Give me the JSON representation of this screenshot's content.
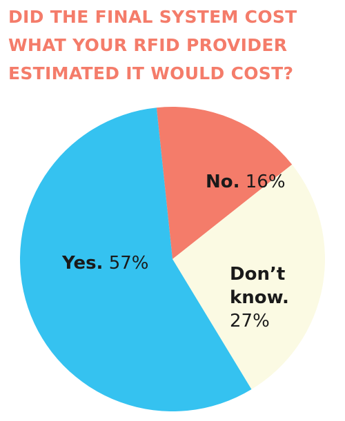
{
  "chart_data": {
    "type": "pie",
    "title": "DID THE FINAL SYSTEM COST WHAT YOUR RFID PROVIDER ESTIMATED IT WOULD COST?",
    "slices": [
      {
        "label": "No.",
        "value": 16,
        "value_text": "16%",
        "color": "#f47c6a"
      },
      {
        "label": "Don’t know.",
        "value": 27,
        "value_text": "27%",
        "color": "#fbfae3"
      },
      {
        "label": "Yes.",
        "value": 57,
        "value_text": "57%",
        "color": "#35c2f0"
      }
    ]
  },
  "colors": {
    "title": "#f47c6a"
  }
}
